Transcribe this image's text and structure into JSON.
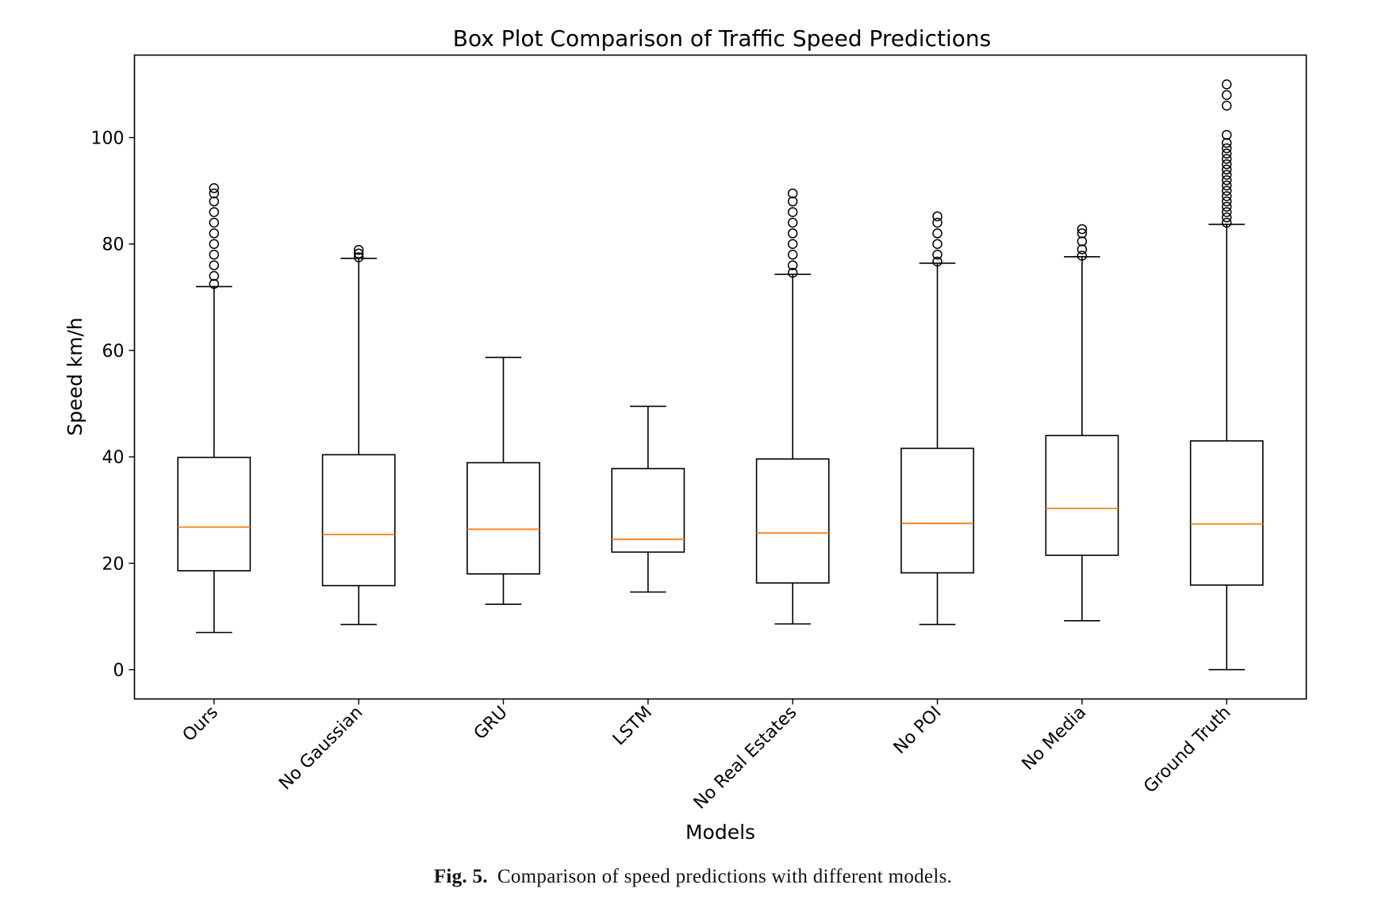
{
  "chart_data": {
    "type": "box",
    "title": "Box Plot Comparison of Traffic Speed Predictions",
    "xlabel": "Models",
    "ylabel": "Speed km/h",
    "ylim": [
      -5.5,
      115.5
    ],
    "yticks": [
      0,
      20,
      40,
      60,
      80,
      100
    ],
    "grid": false,
    "colors": {
      "box": "#000000",
      "median": "#ff7f0e",
      "background": "#ffffff"
    },
    "categories": [
      "Ours",
      "No Gaussian",
      "GRU",
      "LSTM",
      "No Real Estates",
      "No POI",
      "No Media",
      "Ground Truth"
    ],
    "boxes": [
      {
        "label": "Ours",
        "whislo": 7.0,
        "q1": 18.6,
        "med": 26.8,
        "q3": 39.9,
        "whishi": 72.0,
        "fliers": [
          72.5,
          74,
          76,
          78,
          80,
          82,
          84,
          86,
          88,
          89.5,
          90.5
        ]
      },
      {
        "label": "No Gaussian",
        "whislo": 8.5,
        "q1": 15.8,
        "med": 25.4,
        "q3": 40.4,
        "whishi": 77.3,
        "fliers": [
          77.5,
          78.2,
          78.9
        ]
      },
      {
        "label": "GRU",
        "whislo": 12.3,
        "q1": 18.0,
        "med": 26.4,
        "q3": 38.9,
        "whishi": 58.7,
        "fliers": []
      },
      {
        "label": "LSTM",
        "whislo": 14.6,
        "q1": 22.1,
        "med": 24.5,
        "q3": 37.8,
        "whishi": 49.5,
        "fliers": []
      },
      {
        "label": "No Real Estates",
        "whislo": 8.6,
        "q1": 16.3,
        "med": 25.7,
        "q3": 39.6,
        "whishi": 74.3,
        "fliers": [
          74.6,
          76,
          78,
          80,
          82,
          84,
          86,
          88,
          89.5
        ]
      },
      {
        "label": "No POI",
        "whislo": 8.5,
        "q1": 18.2,
        "med": 27.5,
        "q3": 41.6,
        "whishi": 76.4,
        "fliers": [
          76.7,
          78,
          80,
          82,
          84,
          85.2
        ]
      },
      {
        "label": "No Media",
        "whislo": 9.2,
        "q1": 21.5,
        "med": 30.3,
        "q3": 44.0,
        "whishi": 77.6,
        "fliers": [
          77.8,
          79,
          80.5,
          82,
          82.8
        ]
      },
      {
        "label": "Ground Truth",
        "whislo": 0.0,
        "q1": 15.9,
        "med": 27.4,
        "q3": 43.0,
        "whishi": 83.7,
        "fliers": [
          84,
          85,
          86,
          87,
          88,
          89,
          90,
          91,
          92,
          93,
          94,
          95,
          96,
          97,
          98,
          99,
          100.5,
          106,
          108,
          110
        ]
      }
    ]
  },
  "caption": {
    "label": "Fig. 5.",
    "text": "Comparison of speed predictions with different models."
  }
}
